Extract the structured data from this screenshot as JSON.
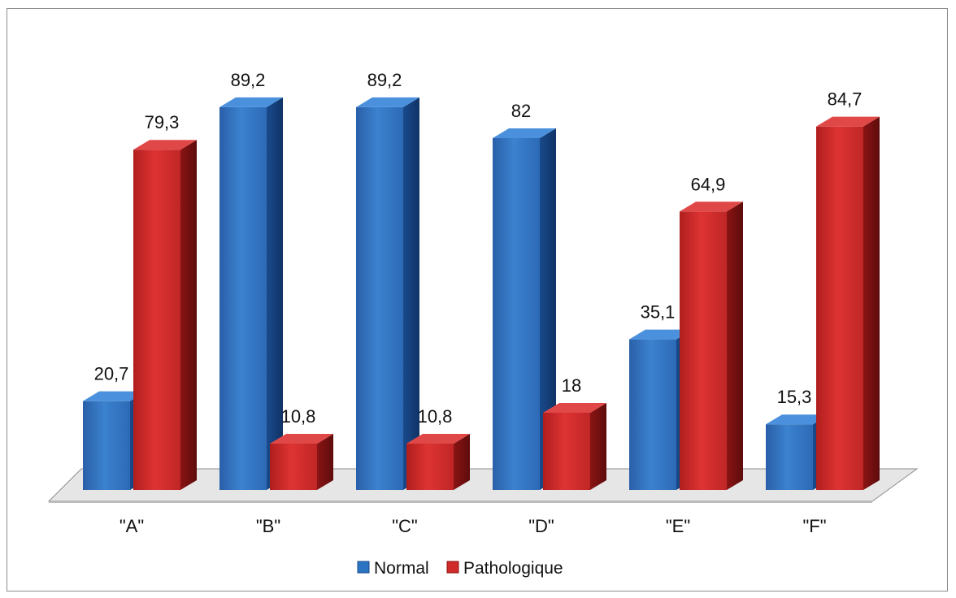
{
  "chart_data": {
    "type": "bar",
    "categories": [
      "\"A\"",
      "\"B\"",
      "\"C\"",
      "\"D\"",
      "\"E\"",
      "\"F\""
    ],
    "series": [
      {
        "name": "Normal",
        "values": [
          20.7,
          89.2,
          89.2,
          82,
          35.1,
          15.3
        ],
        "labels": [
          "20,7",
          "89,2",
          "89,2",
          "82",
          "35,1",
          "15,3"
        ],
        "color": "#2b74c2"
      },
      {
        "name": "Pathologique",
        "values": [
          79.3,
          10.8,
          10.8,
          18,
          64.9,
          84.7
        ],
        "labels": [
          "79,3",
          "10,8",
          "10,8",
          "18",
          "64,9",
          "84,7"
        ],
        "color": "#d12a2a"
      }
    ],
    "ylim": [
      0,
      100
    ],
    "style": "3d-clustered-column",
    "grid": false,
    "legend_position": "bottom"
  }
}
